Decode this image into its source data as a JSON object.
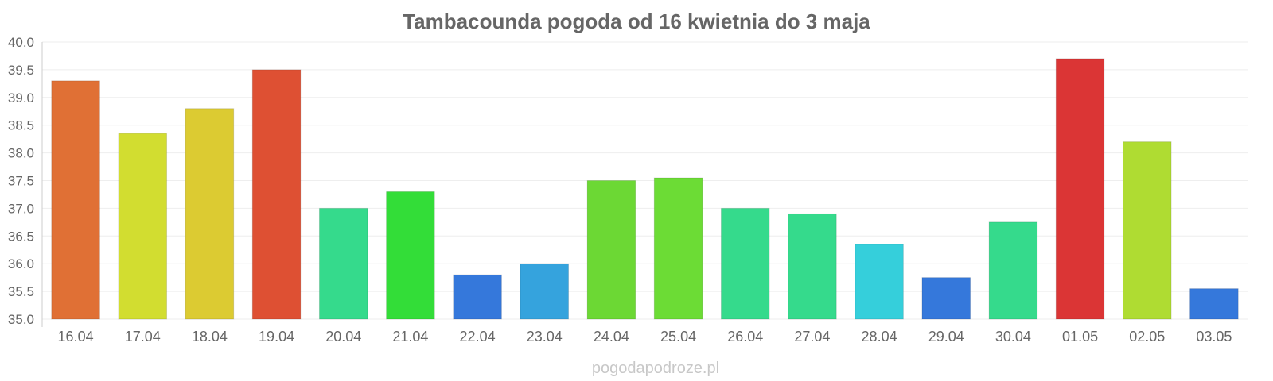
{
  "chart_data": {
    "type": "bar",
    "title": "Tambacounda pogoda od 16 kwietnia do 3 maja",
    "xlabel": "",
    "ylabel": "",
    "ylim": [
      35.0,
      40.0
    ],
    "yticks": [
      "35.0",
      "35.5",
      "36.0",
      "36.5",
      "37.0",
      "37.5",
      "38.0",
      "38.5",
      "39.0",
      "39.5",
      "40.0"
    ],
    "grid": true,
    "categories": [
      "16.04",
      "17.04",
      "18.04",
      "19.04",
      "20.04",
      "21.04",
      "22.04",
      "23.04",
      "24.04",
      "25.04",
      "26.04",
      "27.04",
      "28.04",
      "29.04",
      "30.04",
      "01.05",
      "02.05",
      "03.05"
    ],
    "values": [
      39.3,
      38.35,
      38.8,
      39.5,
      37.0,
      37.3,
      35.8,
      36.0,
      37.5,
      37.55,
      37.0,
      36.9,
      36.35,
      35.75,
      36.75,
      39.7,
      38.2,
      35.55
    ],
    "colors": [
      "#e07035",
      "#d2dd30",
      "#dccb32",
      "#de5033",
      "#35da8c",
      "#33dd38",
      "#3578db",
      "#35a3dd",
      "#6cd834",
      "#6cdc35",
      "#35da8c",
      "#35da8c",
      "#35cfdb",
      "#3578db",
      "#35da8c",
      "#db3535",
      "#afdc32",
      "#3578db"
    ]
  },
  "watermark": "pogodapodroze.pl"
}
